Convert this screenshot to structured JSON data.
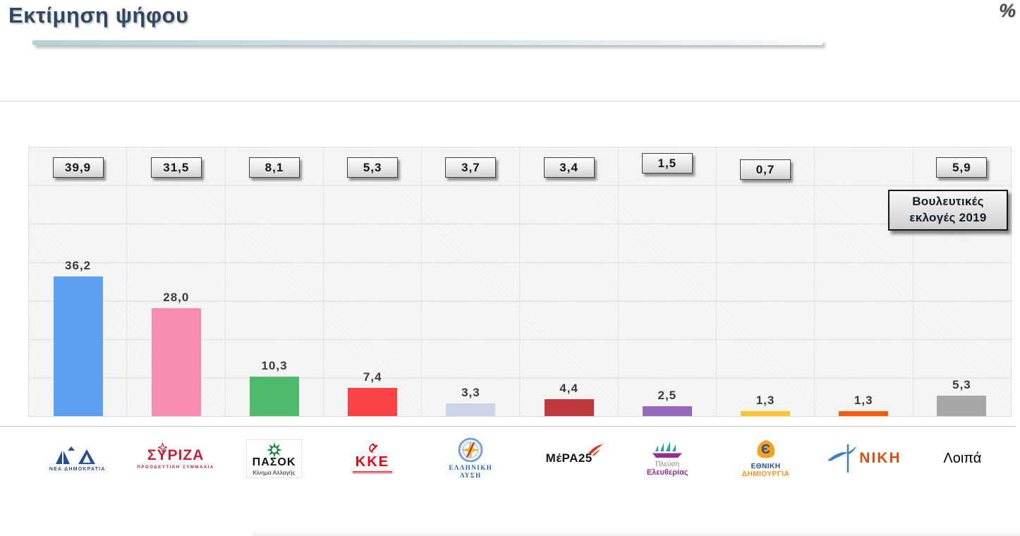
{
  "header": {
    "title": "Εκτίμηση ψήφου",
    "unit_label": "%"
  },
  "annotation_box": {
    "line1": "Βουλευτικές",
    "line2": "εκλογές 2019"
  },
  "chart_data": {
    "type": "bar",
    "title": "Εκτίμηση ψήφου",
    "unit": "%",
    "categories": [
      "ΝΕΑ ΔΗΜΟΚΡΑΤΙΑ",
      "ΣΥΡΙΖΑ",
      "ΠΑΣΟΚ",
      "ΚΚΕ",
      "ΕΛΛΗΝΙΚΗ ΛΥΣΗ",
      "ΜέΡΑ25",
      "Πλεύση Ελευθερίας",
      "ΕΘΝΙΚΗ ΔΗΜΙΟΥΡΓΙΑ",
      "ΝΙΚΗ",
      "Λοιπά"
    ],
    "series": [
      {
        "name": "Εκτίμηση ψήφου",
        "values": [
          36.2,
          28.0,
          10.3,
          7.4,
          3.3,
          4.4,
          2.5,
          1.3,
          1.3,
          5.3
        ],
        "labels": [
          "36,2",
          "28,0",
          "10,3",
          "7,4",
          "3,3",
          "4,4",
          "2,5",
          "1,3",
          "1,3",
          "5,3"
        ]
      },
      {
        "name": "Βουλευτικές εκλογές 2019",
        "values": [
          39.9,
          31.5,
          8.1,
          5.3,
          3.7,
          3.4,
          1.5,
          0.7,
          null,
          5.9
        ],
        "labels": [
          "39,9",
          "31,5",
          "8,1",
          "5,3",
          "3,7",
          "3,4",
          "1,5",
          "0,7",
          null,
          "5,9"
        ]
      }
    ],
    "bar_colors": [
      "#5ea1f2",
      "#f78cb2",
      "#4dba6c",
      "#fb4244",
      "#cdd4ea",
      "#c0393c",
      "#9468bd",
      "#f9c434",
      "#fd5a0e",
      "#a7a7a7"
    ],
    "ylim": [
      0,
      70
    ],
    "grid": "on",
    "legend_position": "top-right",
    "decimal_separator": ","
  },
  "parties": [
    {
      "name": "ΝΕΑ ΔΗΜΟΚΡΑΤΙΑ",
      "logo_color": "#2a4e92"
    },
    {
      "name": "ΣΥΡΙΖΑ",
      "subtitle": "ΠΡΟΟΔΕΥΤΙΚΗ ΣΥΜΜΑΧΙΑ",
      "logo_color": "#c6203a"
    },
    {
      "name": "ΠΑΣΟΚ",
      "subtitle": "Κίνημα Αλλαγής",
      "logo_color": "#17873d"
    },
    {
      "name": "ΚΚΕ",
      "logo_color": "#e30613"
    },
    {
      "name": "ΕΛΛΗΝΙΚΗ ΛΥΣΗ",
      "line1": "ΕΛΛΗΝΙΚΗ",
      "line2": "ΛΥΣΗ",
      "logo_color": "#2263a8"
    },
    {
      "name": "ΜέΡΑ25",
      "logo_color": "#151515",
      "accent": "#e0331f"
    },
    {
      "name": "Πλεύση Ελευθερίας",
      "line1": "Πλεύση",
      "line2": "Ελευθερίας",
      "logo_color": "#962d91",
      "accent": "#1ba8a0"
    },
    {
      "name": "ΕΘΝΙΚΗ ΔΗΜΙΟΥΡΓΙΑ",
      "line1": "ΕΘΝΙΚΗ",
      "line2": "ΔΗΜΙΟΥΡΓΙΑ",
      "monogram": "Є",
      "logo_color": "#1f4e9e",
      "accent": "#f6a21c"
    },
    {
      "name": "ΝΙΚΗ",
      "logo_color": "#d4510f",
      "accent": "#3f7fc1"
    },
    {
      "name": "Λοιπά",
      "logo_color": "#000000"
    }
  ]
}
